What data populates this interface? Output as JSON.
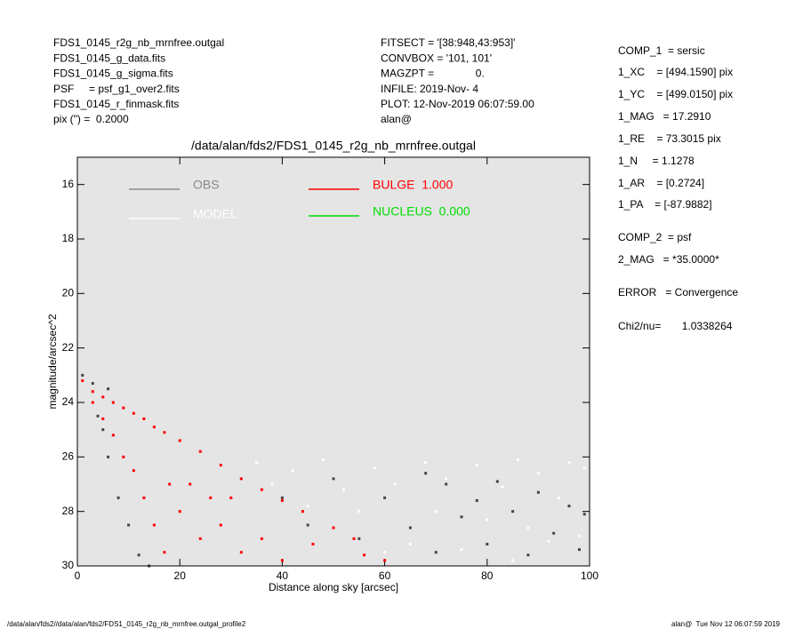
{
  "header": {
    "left": [
      "FDS1_0145_r2g_nb_mrnfree.outgal",
      "FDS1_0145_g_data.fits",
      "FDS1_0145_g_sigma.fits",
      "PSF     = psf_g1_over2.fits",
      "FDS1_0145_r_finmask.fits",
      "pix (\") =  0.2000"
    ],
    "middle": [
      "FITSECT = '[38:948,43:953]'",
      "CONVBOX = '101, 101'",
      "MAGZPT =              0.",
      "INFILE: 2019-Nov- 4",
      "PLOT: 12-Nov-2019 06:07:59.00",
      "alan@"
    ],
    "right": [
      "COMP_1  = sersic",
      "1_XC    = [494.1590] pix",
      "1_YC    = [499.0150] pix",
      "1_MAG   = 17.2910",
      "1_RE    = 73.3015 pix",
      "1_N     = 1.1278",
      "1_AR    = [0.2724]",
      "1_PA    = [-87.9882]",
      "COMP_2  = psf",
      "2_MAG   = *35.0000*",
      "ERROR   = Convergence",
      "Chi2/nu=       1.0338264"
    ]
  },
  "footer": {
    "left": "/data/alan/fds2//data/alan/fds2/FDS1_0145_r2g_nb_mrnfree.outgal_profile2",
    "right": "alan@  Tue Nov 12 06:07:59 2019"
  },
  "chart_data": {
    "type": "scatter",
    "title": "/data/alan/fds2/FDS1_0145_r2g_nb_mrnfree.outgal",
    "x_label": "Distance along sky [arcsec]",
    "y_label": "magnitude/arcsec^2",
    "xlim": [
      0,
      100
    ],
    "xticks": [
      0,
      20,
      40,
      60,
      80,
      100
    ],
    "ylim": [
      15,
      30
    ],
    "yticks": [
      16,
      18,
      20,
      22,
      24,
      26,
      28,
      30
    ],
    "y_inverted": true,
    "background": "#e5e5e5",
    "series": [
      {
        "name": "OBS",
        "color": "#888888",
        "point_color": "#444444",
        "x": [
          1,
          3,
          4,
          6,
          6,
          8,
          10,
          12,
          14,
          5,
          40,
          45,
          50,
          55,
          60,
          65,
          70,
          72,
          75,
          80,
          82,
          85,
          88,
          90,
          93,
          96,
          98,
          99,
          68,
          78
        ],
        "values": [
          23,
          23.3,
          24.5,
          23.5,
          26,
          27.5,
          28.5,
          29.6,
          30,
          25,
          27.5,
          28.5,
          26.8,
          29,
          27.5,
          28.6,
          29.5,
          27,
          28.2,
          29.2,
          26.9,
          28,
          29.6,
          27.3,
          28.8,
          27.8,
          29.4,
          28.1,
          26.6,
          27.6
        ]
      },
      {
        "name": "MODEL",
        "color": "#ffffff",
        "point_color": "#ffffff",
        "x": [
          35,
          38,
          42,
          45,
          48,
          52,
          55,
          58,
          62,
          65,
          68,
          70,
          72,
          75,
          78,
          80,
          83,
          86,
          88,
          90,
          92,
          94,
          96,
          98,
          99,
          60,
          85
        ],
        "values": [
          26.2,
          27,
          26.5,
          27.8,
          26.1,
          27.2,
          28,
          26.4,
          27,
          29.2,
          26.2,
          28,
          26.8,
          29.4,
          26.3,
          28.3,
          27.1,
          26.1,
          28.6,
          26.6,
          29.1,
          27.5,
          26.2,
          28.9,
          26.4,
          29.5,
          29.8
        ]
      },
      {
        "name": "BULGE  1.000",
        "color": "#ff0000",
        "point_color": "#ff0000",
        "x": [
          1,
          3,
          3,
          5,
          5,
          7,
          7,
          9,
          9,
          11,
          11,
          13,
          13,
          15,
          15,
          17,
          17,
          20,
          20,
          24,
          24,
          28,
          28,
          32,
          32,
          36,
          36,
          40,
          40,
          44,
          46,
          50,
          54,
          56,
          60,
          26,
          30,
          18,
          22
        ],
        "values": [
          23.2,
          23.6,
          24,
          23.8,
          24.6,
          24,
          25.2,
          24.2,
          26,
          24.4,
          26.5,
          24.6,
          27.5,
          24.9,
          28.5,
          25.1,
          29.5,
          25.4,
          28,
          25.8,
          29,
          26.3,
          28.5,
          26.8,
          29.5,
          27.2,
          29,
          27.6,
          29.8,
          28,
          29.2,
          28.6,
          29,
          29.6,
          29.8,
          27.5,
          27.5,
          27,
          27
        ]
      },
      {
        "name": "NUCLEUS  0.000",
        "color": "#00dd00",
        "point_color": "#00dd00",
        "x": [],
        "values": []
      }
    ]
  }
}
